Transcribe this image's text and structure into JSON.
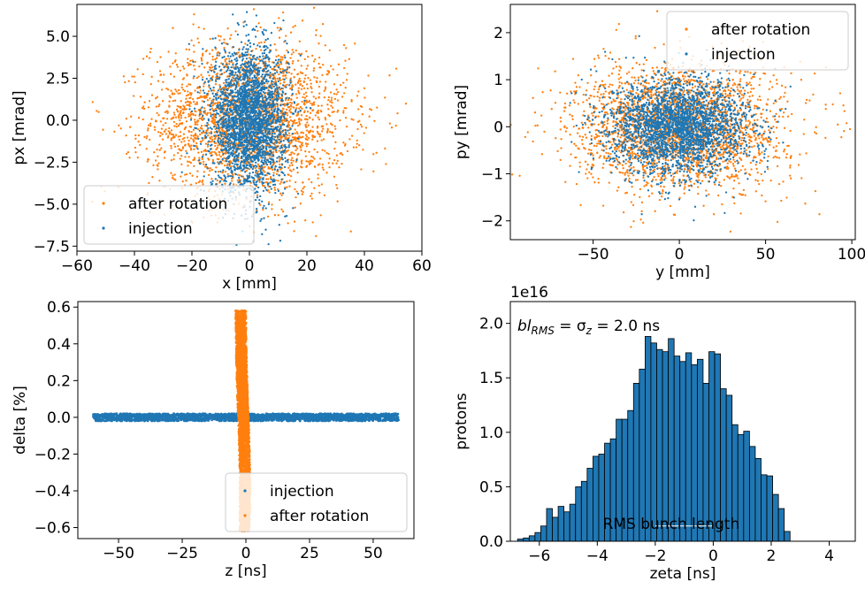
{
  "colors": {
    "injection": "#1f77b4",
    "after_rotation": "#ff7f0e",
    "axis": "#000000",
    "bar_edge": "#000000"
  },
  "chart_data": [
    {
      "type": "scatter",
      "xlabel": "x [mm]",
      "ylabel": "px [mrad]",
      "xlim": [
        -60,
        60
      ],
      "ylim": [
        -7.8,
        6.9
      ],
      "xticks": [
        -60,
        -40,
        -20,
        0,
        20,
        40,
        60
      ],
      "xtick_labels": [
        "−60",
        "−40",
        "−20",
        "0",
        "20",
        "40",
        "60"
      ],
      "yticks": [
        -7.5,
        -5.0,
        -2.5,
        0.0,
        2.5,
        5.0
      ],
      "ytick_labels": [
        "−7.5",
        "−5.0",
        "−2.5",
        "0.0",
        "2.5",
        "5.0"
      ],
      "legend_position": "lower-left",
      "legend_order": [
        "after rotation",
        "injection"
      ],
      "series": [
        {
          "name": "injection",
          "color": "#1f77b4",
          "spread": {
            "x_std": 6.5,
            "y_std": 2.1,
            "x_mean": 0,
            "y_mean": 0
          }
        },
        {
          "name": "after rotation",
          "color": "#ff7f0e",
          "spread": {
            "x_std": 17,
            "y_std": 2.3,
            "x_mean": 0,
            "y_mean": 0
          }
        }
      ]
    },
    {
      "type": "scatter",
      "xlabel": "y [mm]",
      "ylabel": "py [mrad]",
      "xlim": [
        -98,
        102
      ],
      "ylim": [
        -2.4,
        2.6
      ],
      "xticks": [
        -50,
        0,
        50,
        100
      ],
      "xtick_labels": [
        "−50",
        "0",
        "50",
        "100"
      ],
      "yticks": [
        -2,
        -1,
        0,
        1,
        2
      ],
      "ytick_labels": [
        "−2",
        "−1",
        "0",
        "1",
        "2"
      ],
      "legend_position": "upper-right",
      "legend_order": [
        "after rotation",
        "injection"
      ],
      "series": [
        {
          "name": "injection",
          "color": "#1f77b4",
          "spread": {
            "x_std": 20,
            "y_std": 0.5,
            "x_mean": 0,
            "y_mean": 0
          }
        },
        {
          "name": "after rotation",
          "color": "#ff7f0e",
          "spread": {
            "x_std": 30,
            "y_std": 0.65,
            "x_mean": 0,
            "y_mean": 0
          }
        }
      ]
    },
    {
      "type": "scatter",
      "xlabel": "z [ns]",
      "ylabel": "delta [%]",
      "xlim": [
        -66,
        66
      ],
      "ylim": [
        -0.66,
        0.63
      ],
      "xticks": [
        -50,
        -25,
        0,
        25,
        50
      ],
      "xtick_labels": [
        "−50",
        "−25",
        "0",
        "25",
        "50"
      ],
      "yticks": [
        -0.6,
        -0.4,
        -0.2,
        0.0,
        0.2,
        0.4,
        0.6
      ],
      "ytick_labels": [
        "−0.6",
        "−0.4",
        "−0.2",
        "0.0",
        "0.2",
        "0.4",
        "0.6"
      ],
      "legend_position": "lower-right",
      "legend_order": [
        "injection",
        "after rotation"
      ],
      "series": [
        {
          "name": "injection",
          "color": "#1f77b4",
          "z_range": [
            -60,
            60
          ],
          "delta_halfwidth": 0.02
        },
        {
          "name": "after rotation",
          "color": "#ff7f0e",
          "delta_range": [
            -0.62,
            0.58
          ],
          "z_center": -1,
          "z_halfwidth": 2,
          "curvature": 6
        }
      ]
    },
    {
      "type": "bar",
      "xlabel": "zeta [ns]",
      "ylabel": "protons",
      "offset_text": "1e16",
      "annotation": "bl",
      "annotation_sub": "RMS",
      "annotation_tail": " = σ",
      "annotation_sub2": "z",
      "annotation_value": " = 2.0 ns",
      "rms_label": "RMS bunch length",
      "rms_span": [
        -2.0,
        0.0
      ],
      "xlim": [
        -7.0,
        4.9
      ],
      "ylim": [
        0,
        2.2
      ],
      "xticks": [
        -6,
        -4,
        -2,
        0,
        2,
        4
      ],
      "xtick_labels": [
        "−6",
        "−4",
        "−2",
        "0",
        "2",
        "4"
      ],
      "yticks": [
        0.0,
        0.5,
        1.0,
        1.5,
        2.0
      ],
      "ytick_labels": [
        "0.0",
        "0.5",
        "1.0",
        "1.5",
        "2.0"
      ],
      "bin_start": -6.75,
      "bin_width": 0.2,
      "values": [
        0.02,
        0.03,
        0.05,
        0.08,
        0.14,
        0.3,
        0.22,
        0.32,
        0.27,
        0.34,
        0.5,
        0.55,
        0.67,
        0.78,
        0.8,
        0.9,
        0.94,
        1.12,
        1.12,
        1.2,
        1.45,
        1.58,
        1.88,
        1.82,
        1.76,
        1.74,
        1.86,
        1.7,
        1.65,
        1.73,
        1.62,
        1.67,
        1.45,
        1.74,
        1.72,
        1.4,
        1.34,
        1.07,
        0.98,
        1.01,
        0.87,
        0.76,
        0.61,
        0.6,
        0.43,
        0.3,
        0.09
      ]
    }
  ]
}
